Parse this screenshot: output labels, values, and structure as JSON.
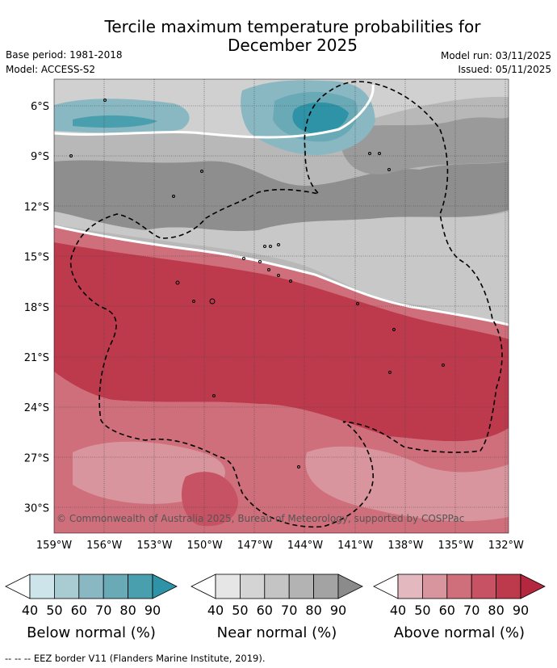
{
  "title": {
    "line1": "Tercile maximum temperature probabilities for",
    "line2": "December 2025"
  },
  "meta": {
    "base_period": "Base period: 1981-2018",
    "model": "Model: ACCESS-S2",
    "model_run": "Model run: 03/11/2025",
    "issued": "Issued: 05/11/2025"
  },
  "map": {
    "lat_labels": [
      "6°S",
      "9°S",
      "12°S",
      "15°S",
      "18°S",
      "21°S",
      "24°S",
      "27°S",
      "30°S"
    ],
    "lon_labels": [
      "159°W",
      "156°W",
      "153°W",
      "150°W",
      "147°W",
      "144°W",
      "141°W",
      "138°W",
      "135°W",
      "132°W"
    ],
    "copyright": "© Commonwealth of Australia 2025, Bureau of Meteorology, supported by COSPPac"
  },
  "colorbars": [
    {
      "title": "Below normal (%)",
      "ticks": [
        "40",
        "50",
        "60",
        "70",
        "80",
        "90"
      ],
      "colors": [
        "#ffffff",
        "#cde4ea",
        "#a9ccd3",
        "#89b8c3",
        "#6aaab7",
        "#4a9fae",
        "#2e93a6"
      ]
    },
    {
      "title": "Near normal (%)",
      "ticks": [
        "40",
        "50",
        "60",
        "70",
        "80",
        "90"
      ],
      "colors": [
        "#ffffff",
        "#e6e6e6",
        "#d4d4d4",
        "#c4c4c4",
        "#b3b3b3",
        "#a3a3a3",
        "#8b8b8b"
      ]
    },
    {
      "title": "Above normal (%)",
      "ticks": [
        "40",
        "50",
        "60",
        "70",
        "80",
        "90"
      ],
      "colors": [
        "#ffffff",
        "#e3b8be",
        "#d8959e",
        "#cf6f7b",
        "#c65263",
        "#bd3a4d",
        "#b3283e"
      ]
    }
  ],
  "footnote": "-- -- -- EEZ border V11 (Flanders Marine Institute, 2019)."
}
